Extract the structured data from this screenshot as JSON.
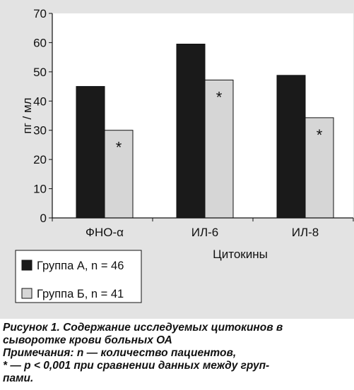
{
  "chart_data": {
    "type": "bar",
    "categories": [
      "ФНО-α",
      "ИЛ-6",
      "ИЛ-8"
    ],
    "series": [
      {
        "name": "Группа А, n = 46",
        "values": [
          45,
          59.5,
          48.8
        ],
        "color": "#1a1a1a"
      },
      {
        "name": "Группа Б, n = 41",
        "values": [
          30,
          47.2,
          34.3
        ],
        "color": "#d6d6d6"
      }
    ],
    "markers": {
      "series_index": 1,
      "symbol": "*"
    },
    "xlabel": "Цитокины",
    "ylabel": "пг / мл",
    "ylim": [
      0,
      70
    ],
    "yticks": [
      0,
      10,
      20,
      30,
      40,
      50,
      60,
      70
    ],
    "grid": false,
    "legend_position": "bottom-left",
    "plot_background": "#ffffff",
    "figure_background": "#e3e3e3"
  },
  "caption": {
    "lines": [
      "Рисунок 1. Содержание исследуемых цитокинов в",
      "сыворотке крови больных ОА",
      "Примечания: n — количество пациентов,",
      "* — p < 0,001 при сравнении данных между груп-",
      "пами."
    ]
  }
}
